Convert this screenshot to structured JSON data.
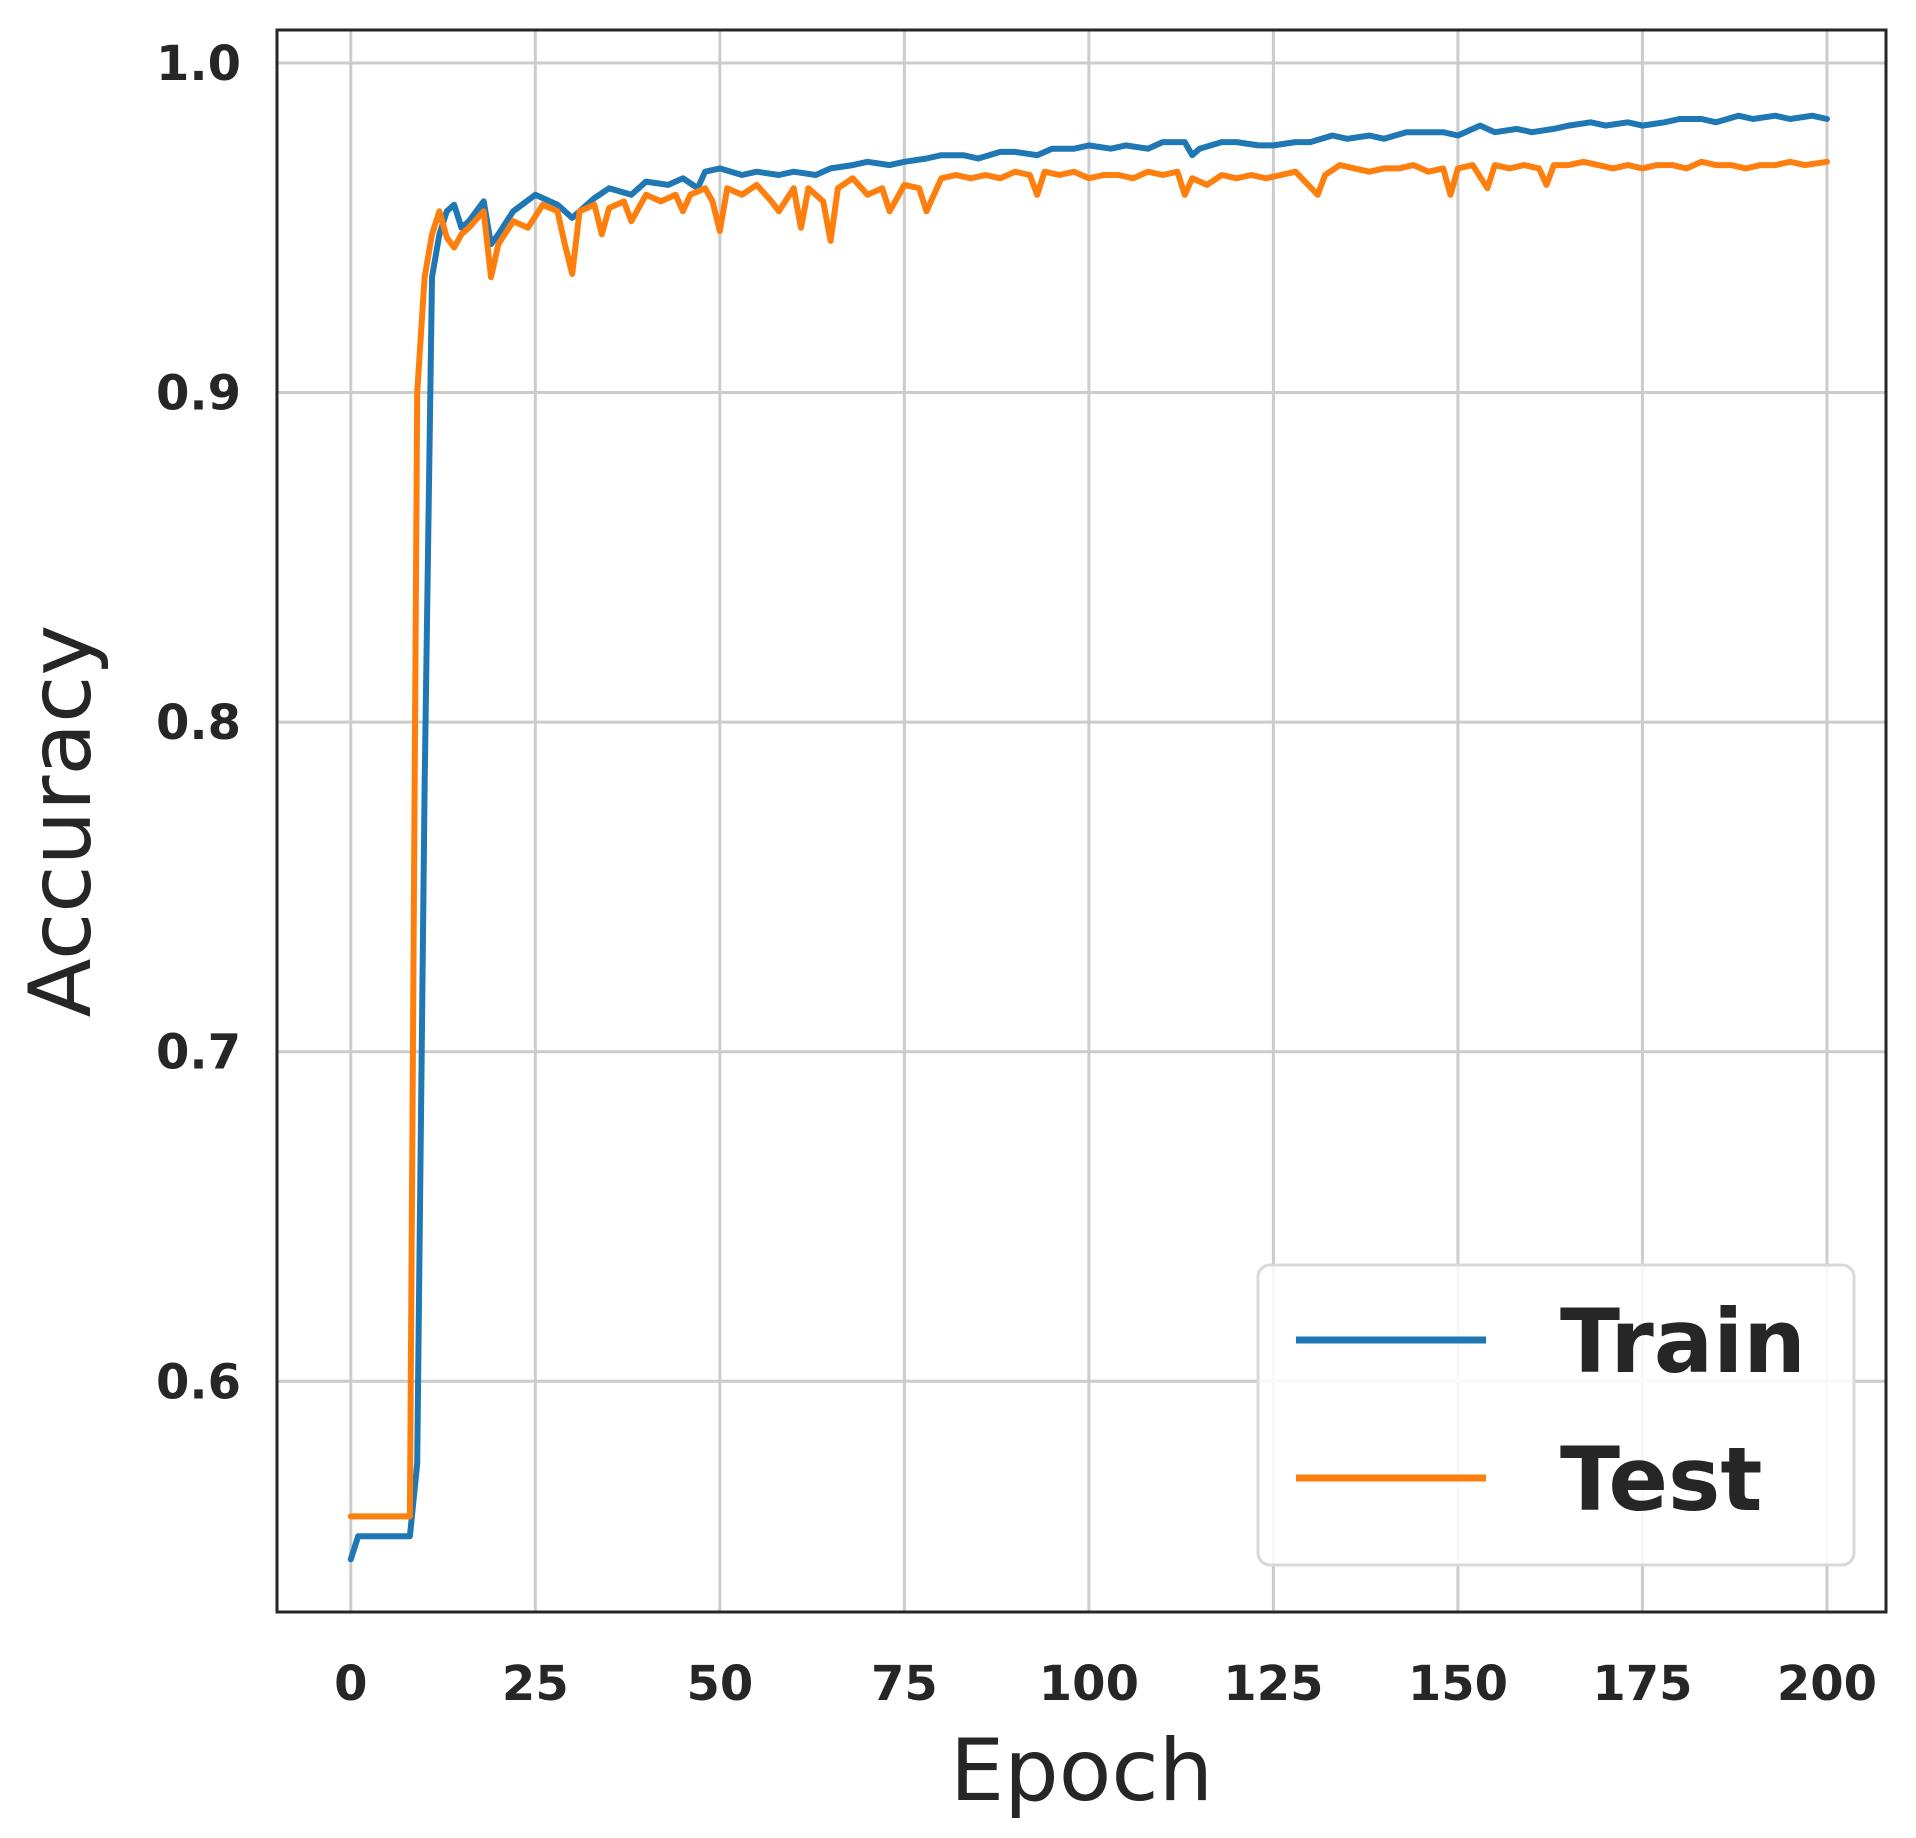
{
  "chart_data": {
    "type": "line",
    "xlabel": "Epoch",
    "ylabel": "Accuracy",
    "xlim": [
      -10,
      208
    ],
    "ylim": [
      0.53,
      1.01
    ],
    "xticks": [
      0,
      25,
      50,
      75,
      100,
      125,
      150,
      175,
      200
    ],
    "yticks": [
      0.6,
      0.7,
      0.8,
      0.9,
      1.0
    ],
    "ytick_labels": [
      "0.6",
      "0.7",
      "0.8",
      "0.9",
      "1.0"
    ],
    "grid": true,
    "legend_position": "lower-right",
    "colors": {
      "train": "#1f77b4",
      "test": "#ff7f0e"
    },
    "series": [
      {
        "name": "Train",
        "color": "#1f77b4",
        "points": [
          [
            0,
            0.546
          ],
          [
            1,
            0.553
          ],
          [
            2,
            0.553
          ],
          [
            3,
            0.553
          ],
          [
            4,
            0.553
          ],
          [
            5,
            0.553
          ],
          [
            6,
            0.553
          ],
          [
            7,
            0.553
          ],
          [
            8,
            0.553
          ],
          [
            9,
            0.575
          ],
          [
            10,
            0.78
          ],
          [
            11,
            0.935
          ],
          [
            12,
            0.948
          ],
          [
            13,
            0.955
          ],
          [
            14,
            0.957
          ],
          [
            15,
            0.95
          ],
          [
            16,
            0.952
          ],
          [
            17,
            0.955
          ],
          [
            18,
            0.958
          ],
          [
            19,
            0.945
          ],
          [
            20,
            0.948
          ],
          [
            22,
            0.955
          ],
          [
            25,
            0.96
          ],
          [
            28,
            0.957
          ],
          [
            30,
            0.953
          ],
          [
            33,
            0.959
          ],
          [
            35,
            0.962
          ],
          [
            38,
            0.96
          ],
          [
            40,
            0.964
          ],
          [
            43,
            0.963
          ],
          [
            45,
            0.965
          ],
          [
            47,
            0.962
          ],
          [
            48,
            0.967
          ],
          [
            50,
            0.968
          ],
          [
            53,
            0.966
          ],
          [
            55,
            0.967
          ],
          [
            58,
            0.966
          ],
          [
            60,
            0.967
          ],
          [
            63,
            0.966
          ],
          [
            65,
            0.968
          ],
          [
            68,
            0.969
          ],
          [
            70,
            0.97
          ],
          [
            73,
            0.969
          ],
          [
            75,
            0.97
          ],
          [
            78,
            0.971
          ],
          [
            80,
            0.972
          ],
          [
            83,
            0.972
          ],
          [
            85,
            0.971
          ],
          [
            88,
            0.973
          ],
          [
            90,
            0.973
          ],
          [
            93,
            0.972
          ],
          [
            95,
            0.974
          ],
          [
            98,
            0.974
          ],
          [
            100,
            0.975
          ],
          [
            103,
            0.974
          ],
          [
            105,
            0.975
          ],
          [
            108,
            0.974
          ],
          [
            110,
            0.976
          ],
          [
            113,
            0.976
          ],
          [
            114,
            0.972
          ],
          [
            115,
            0.974
          ],
          [
            118,
            0.976
          ],
          [
            120,
            0.976
          ],
          [
            123,
            0.975
          ],
          [
            125,
            0.975
          ],
          [
            128,
            0.976
          ],
          [
            130,
            0.976
          ],
          [
            133,
            0.978
          ],
          [
            135,
            0.977
          ],
          [
            138,
            0.978
          ],
          [
            140,
            0.977
          ],
          [
            143,
            0.979
          ],
          [
            145,
            0.979
          ],
          [
            148,
            0.979
          ],
          [
            150,
            0.978
          ],
          [
            153,
            0.981
          ],
          [
            155,
            0.979
          ],
          [
            158,
            0.98
          ],
          [
            160,
            0.979
          ],
          [
            163,
            0.98
          ],
          [
            165,
            0.981
          ],
          [
            168,
            0.982
          ],
          [
            170,
            0.981
          ],
          [
            173,
            0.982
          ],
          [
            175,
            0.981
          ],
          [
            178,
            0.982
          ],
          [
            180,
            0.983
          ],
          [
            183,
            0.983
          ],
          [
            185,
            0.982
          ],
          [
            188,
            0.984
          ],
          [
            190,
            0.983
          ],
          [
            193,
            0.984
          ],
          [
            195,
            0.983
          ],
          [
            198,
            0.984
          ],
          [
            200,
            0.983
          ]
        ]
      },
      {
        "name": "Test",
        "color": "#ff7f0e",
        "points": [
          [
            0,
            0.559
          ],
          [
            1,
            0.559
          ],
          [
            2,
            0.559
          ],
          [
            3,
            0.559
          ],
          [
            4,
            0.559
          ],
          [
            5,
            0.559
          ],
          [
            6,
            0.559
          ],
          [
            7,
            0.559
          ],
          [
            8,
            0.559
          ],
          [
            9,
            0.9
          ],
          [
            10,
            0.935
          ],
          [
            11,
            0.948
          ],
          [
            12,
            0.955
          ],
          [
            13,
            0.947
          ],
          [
            14,
            0.944
          ],
          [
            15,
            0.948
          ],
          [
            16,
            0.95
          ],
          [
            18,
            0.955
          ],
          [
            19,
            0.935
          ],
          [
            20,
            0.945
          ],
          [
            22,
            0.952
          ],
          [
            24,
            0.95
          ],
          [
            26,
            0.957
          ],
          [
            28,
            0.955
          ],
          [
            29,
            0.945
          ],
          [
            30,
            0.936
          ],
          [
            31,
            0.955
          ],
          [
            33,
            0.957
          ],
          [
            34,
            0.948
          ],
          [
            35,
            0.956
          ],
          [
            37,
            0.958
          ],
          [
            38,
            0.952
          ],
          [
            40,
            0.96
          ],
          [
            42,
            0.958
          ],
          [
            44,
            0.96
          ],
          [
            45,
            0.955
          ],
          [
            46,
            0.96
          ],
          [
            48,
            0.962
          ],
          [
            49,
            0.958
          ],
          [
            50,
            0.949
          ],
          [
            51,
            0.962
          ],
          [
            53,
            0.96
          ],
          [
            55,
            0.963
          ],
          [
            57,
            0.958
          ],
          [
            58,
            0.955
          ],
          [
            60,
            0.962
          ],
          [
            61,
            0.95
          ],
          [
            62,
            0.962
          ],
          [
            64,
            0.958
          ],
          [
            65,
            0.946
          ],
          [
            66,
            0.962
          ],
          [
            68,
            0.965
          ],
          [
            70,
            0.96
          ],
          [
            72,
            0.962
          ],
          [
            73,
            0.955
          ],
          [
            75,
            0.963
          ],
          [
            77,
            0.962
          ],
          [
            78,
            0.955
          ],
          [
            80,
            0.965
          ],
          [
            82,
            0.966
          ],
          [
            84,
            0.965
          ],
          [
            86,
            0.966
          ],
          [
            88,
            0.965
          ],
          [
            90,
            0.967
          ],
          [
            92,
            0.966
          ],
          [
            93,
            0.96
          ],
          [
            94,
            0.967
          ],
          [
            96,
            0.966
          ],
          [
            98,
            0.967
          ],
          [
            100,
            0.965
          ],
          [
            102,
            0.966
          ],
          [
            104,
            0.966
          ],
          [
            106,
            0.965
          ],
          [
            108,
            0.967
          ],
          [
            110,
            0.966
          ],
          [
            112,
            0.967
          ],
          [
            113,
            0.96
          ],
          [
            114,
            0.965
          ],
          [
            116,
            0.963
          ],
          [
            118,
            0.966
          ],
          [
            120,
            0.965
          ],
          [
            122,
            0.966
          ],
          [
            124,
            0.965
          ],
          [
            126,
            0.966
          ],
          [
            128,
            0.967
          ],
          [
            131,
            0.96
          ],
          [
            132,
            0.966
          ],
          [
            134,
            0.969
          ],
          [
            136,
            0.968
          ],
          [
            138,
            0.967
          ],
          [
            140,
            0.968
          ],
          [
            142,
            0.968
          ],
          [
            144,
            0.969
          ],
          [
            146,
            0.967
          ],
          [
            148,
            0.968
          ],
          [
            149,
            0.96
          ],
          [
            150,
            0.968
          ],
          [
            152,
            0.969
          ],
          [
            154,
            0.962
          ],
          [
            155,
            0.969
          ],
          [
            157,
            0.968
          ],
          [
            159,
            0.969
          ],
          [
            161,
            0.968
          ],
          [
            162,
            0.963
          ],
          [
            163,
            0.969
          ],
          [
            165,
            0.969
          ],
          [
            167,
            0.97
          ],
          [
            169,
            0.969
          ],
          [
            171,
            0.968
          ],
          [
            173,
            0.969
          ],
          [
            175,
            0.968
          ],
          [
            177,
            0.969
          ],
          [
            179,
            0.969
          ],
          [
            181,
            0.968
          ],
          [
            183,
            0.97
          ],
          [
            185,
            0.969
          ],
          [
            187,
            0.969
          ],
          [
            189,
            0.968
          ],
          [
            191,
            0.969
          ],
          [
            193,
            0.969
          ],
          [
            195,
            0.97
          ],
          [
            197,
            0.969
          ],
          [
            200,
            0.97
          ]
        ]
      }
    ]
  }
}
